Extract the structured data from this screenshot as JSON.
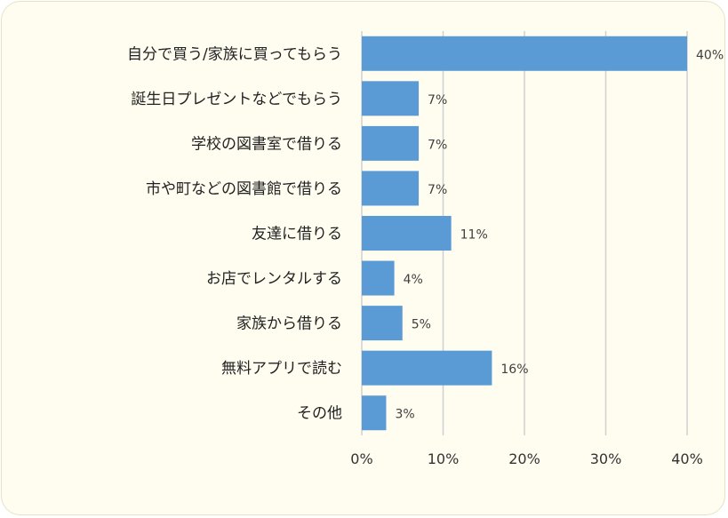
{
  "chart_data": {
    "type": "bar",
    "orientation": "horizontal",
    "categories": [
      "自分で買う/家族に買ってもらう",
      "誕生日プレゼントなどでもらう",
      "学校の図書室で借りる",
      "市や町などの図書館で借りる",
      "友達に借りる",
      "お店でレンタルする",
      "家族から借りる",
      "無料アプリで読む",
      "その他"
    ],
    "values": [
      40,
      7,
      7,
      7,
      11,
      4,
      5,
      16,
      3
    ],
    "value_labels": [
      "40%",
      "7%",
      "7%",
      "7%",
      "11%",
      "4%",
      "5%",
      "16%",
      "3%"
    ],
    "xlim": [
      0,
      40
    ],
    "xticks": [
      0,
      10,
      20,
      30,
      40
    ],
    "xtick_labels": [
      "0%",
      "10%",
      "20%",
      "30%",
      "40%"
    ],
    "grid": "vertical",
    "bar_color": "#5b9bd5",
    "title": "",
    "xlabel": "",
    "ylabel": ""
  }
}
